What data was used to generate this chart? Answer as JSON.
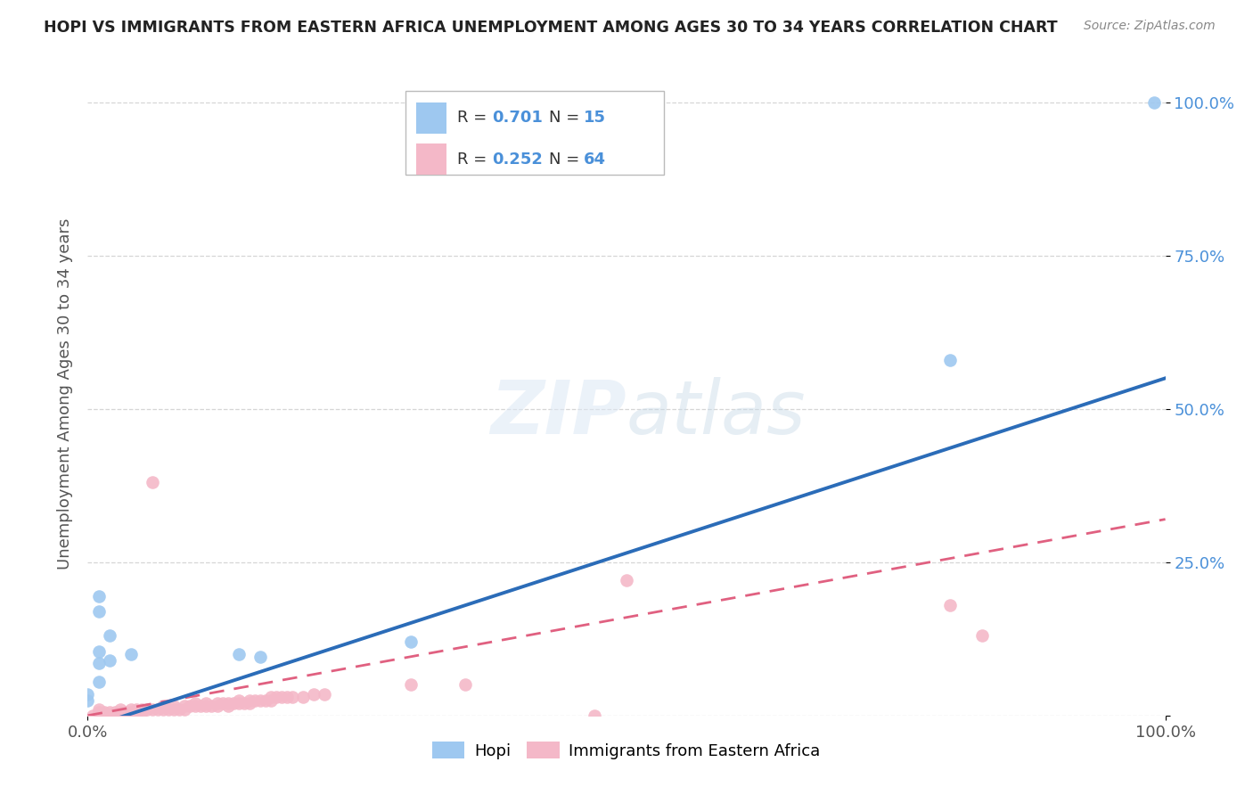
{
  "title": "HOPI VS IMMIGRANTS FROM EASTERN AFRICA UNEMPLOYMENT AMONG AGES 30 TO 34 YEARS CORRELATION CHART",
  "source": "Source: ZipAtlas.com",
  "ylabel": "Unemployment Among Ages 30 to 34 years",
  "watermark": "ZIPatlas",
  "hopi_R": 0.701,
  "hopi_N": 15,
  "immigrants_R": 0.252,
  "immigrants_N": 64,
  "hopi_color": "#9ec8f0",
  "immigrants_color": "#f4b8c8",
  "hopi_line_color": "#2b6cb8",
  "immigrants_line_color": "#e06080",
  "background_color": "#ffffff",
  "grid_color": "#cccccc",
  "hopi_scatter": [
    [
      0.01,
      0.195
    ],
    [
      0.01,
      0.17
    ],
    [
      0.02,
      0.13
    ],
    [
      0.02,
      0.09
    ],
    [
      0.01,
      0.085
    ],
    [
      0.04,
      0.1
    ],
    [
      0.01,
      0.055
    ],
    [
      0.0,
      0.035
    ],
    [
      0.0,
      0.025
    ],
    [
      0.01,
      0.105
    ],
    [
      0.14,
      0.1
    ],
    [
      0.16,
      0.095
    ],
    [
      0.3,
      0.12
    ],
    [
      0.8,
      0.58
    ],
    [
      0.99,
      1.0
    ]
  ],
  "immigrants_scatter": [
    [
      0.005,
      0.0
    ],
    [
      0.01,
      0.005
    ],
    [
      0.01,
      0.01
    ],
    [
      0.015,
      0.005
    ],
    [
      0.02,
      0.005
    ],
    [
      0.025,
      0.0
    ],
    [
      0.025,
      0.005
    ],
    [
      0.03,
      0.005
    ],
    [
      0.03,
      0.01
    ],
    [
      0.035,
      0.005
    ],
    [
      0.04,
      0.005
    ],
    [
      0.04,
      0.01
    ],
    [
      0.045,
      0.005
    ],
    [
      0.045,
      0.01
    ],
    [
      0.05,
      0.005
    ],
    [
      0.05,
      0.01
    ],
    [
      0.055,
      0.01
    ],
    [
      0.06,
      0.01
    ],
    [
      0.065,
      0.01
    ],
    [
      0.07,
      0.01
    ],
    [
      0.07,
      0.015
    ],
    [
      0.075,
      0.01
    ],
    [
      0.08,
      0.01
    ],
    [
      0.08,
      0.015
    ],
    [
      0.085,
      0.01
    ],
    [
      0.09,
      0.01
    ],
    [
      0.09,
      0.015
    ],
    [
      0.095,
      0.015
    ],
    [
      0.1,
      0.015
    ],
    [
      0.1,
      0.02
    ],
    [
      0.105,
      0.015
    ],
    [
      0.11,
      0.015
    ],
    [
      0.11,
      0.02
    ],
    [
      0.115,
      0.015
    ],
    [
      0.12,
      0.015
    ],
    [
      0.12,
      0.02
    ],
    [
      0.125,
      0.02
    ],
    [
      0.13,
      0.015
    ],
    [
      0.13,
      0.02
    ],
    [
      0.135,
      0.02
    ],
    [
      0.14,
      0.02
    ],
    [
      0.14,
      0.025
    ],
    [
      0.145,
      0.02
    ],
    [
      0.15,
      0.02
    ],
    [
      0.15,
      0.025
    ],
    [
      0.155,
      0.025
    ],
    [
      0.16,
      0.025
    ],
    [
      0.165,
      0.025
    ],
    [
      0.17,
      0.025
    ],
    [
      0.17,
      0.03
    ],
    [
      0.175,
      0.03
    ],
    [
      0.18,
      0.03
    ],
    [
      0.185,
      0.03
    ],
    [
      0.19,
      0.03
    ],
    [
      0.2,
      0.03
    ],
    [
      0.21,
      0.035
    ],
    [
      0.22,
      0.035
    ],
    [
      0.3,
      0.05
    ],
    [
      0.35,
      0.05
    ],
    [
      0.47,
      0.0
    ],
    [
      0.06,
      0.38
    ],
    [
      0.5,
      0.22
    ],
    [
      0.8,
      0.18
    ],
    [
      0.83,
      0.13
    ]
  ],
  "hopi_line": [
    0.0,
    -0.02,
    1.0,
    0.55
  ],
  "immigrants_line": [
    0.0,
    0.0,
    1.0,
    0.32
  ],
  "xlim": [
    0.0,
    1.0
  ],
  "ylim": [
    0.0,
    1.05
  ],
  "xtick_labels": [
    "0.0%",
    "100.0%"
  ],
  "ytick_labels_right": [
    "",
    "25.0%",
    "50.0%",
    "75.0%",
    "100.0%"
  ],
  "legend_labels": [
    "Hopi",
    "Immigrants from Eastern Africa"
  ]
}
